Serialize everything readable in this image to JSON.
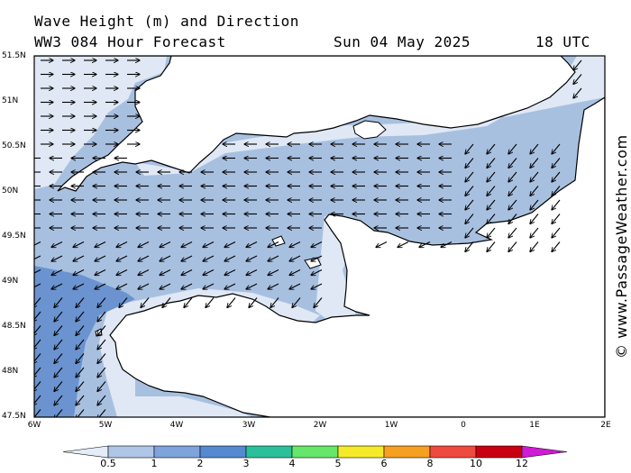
{
  "header": {
    "title": "Wave Height (m) and Direction",
    "subtitle": "WW3 084 Hour Forecast",
    "date": "Sun 04 May 2025",
    "time": "18 UTC"
  },
  "credit": "© www.PassageWeather.com",
  "map": {
    "lat_labels": [
      "51.5N",
      "51N",
      "50.5N",
      "50N",
      "49.5N",
      "49N",
      "48.5N",
      "48N",
      "47.5N"
    ],
    "lon_labels": [
      "6W",
      "5W",
      "4W",
      "3W",
      "2W",
      "1W",
      "0",
      "1E",
      "2E"
    ],
    "lat_range": [
      47.5,
      51.5
    ],
    "lon_range": [
      -6,
      2
    ],
    "sea_color": "#a8c0e0",
    "light_sea_color": "#dfe8f4",
    "dark_sea_color": "#6a93d0",
    "land_color": "#ffffff"
  },
  "colorbar": {
    "labels": [
      "0.5",
      "1",
      "2",
      "3",
      "4",
      "5",
      "6",
      "8",
      "10",
      "12"
    ],
    "colors": [
      "#e4ecf7",
      "#b0c6e6",
      "#7fa4dc",
      "#5589d0",
      "#2bbf9a",
      "#66e66a",
      "#f5ea2a",
      "#f5a020",
      "#ee4a40",
      "#c80010",
      "#d01ad6"
    ]
  }
}
